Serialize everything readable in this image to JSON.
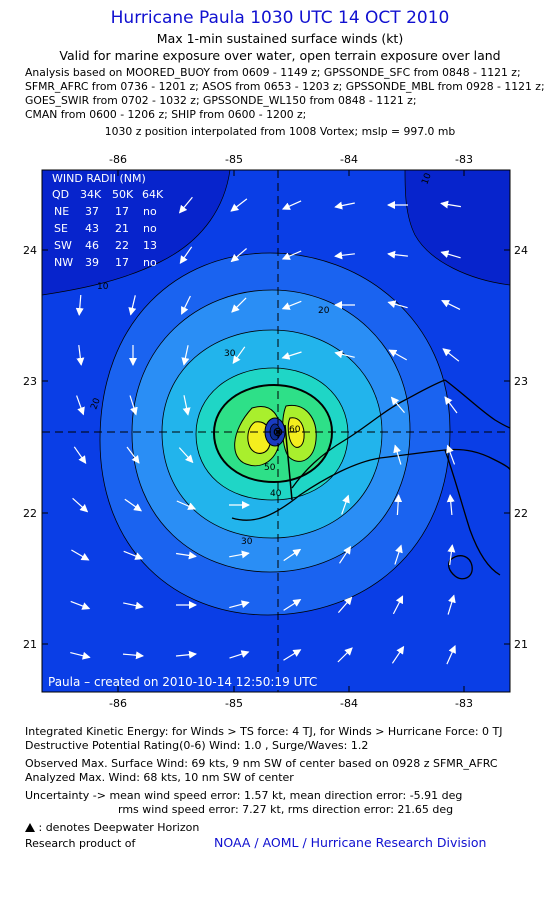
{
  "header": {
    "title": "Hurricane Paula 1030 UTC 14 OCT 2010",
    "subtitle": "Max 1-min sustained surface winds (kt)",
    "validity": "Valid for marine exposure over water, open terrain exposure over land",
    "analysis_lines": [
      "Analysis based on MOORED_BUOY from 0609 - 1149 z; GPSSONDE_SFC from 0848 - 1121 z;",
      "SFMR_AFRC from 0736 - 1201 z; ASOS from 0653 - 1203 z; GPSSONDE_MBL from 0928 - 1121 z;",
      "GOES_SWIR from 0702 - 1032 z; GPSSONDE_WL150 from 0848 - 1121 z;",
      "CMAN from 0600 - 1206 z; SHIP from 0600 - 1200 z;"
    ],
    "position_note": "1030 z position interpolated from 1008 Vortex; mslp = 997.0 mb"
  },
  "map": {
    "lon_ticks": [
      "-86",
      "-85",
      "-84",
      "-83"
    ],
    "lat_ticks": [
      "24",
      "23",
      "22",
      "21"
    ],
    "contour_labels": [
      "10",
      "10",
      "20",
      "20",
      "30",
      "30",
      "40",
      "50",
      "60"
    ],
    "caption": "Paula – created on 2010-10-14 12:50:19 UTC",
    "colors": {
      "background": "#0a3ee6",
      "outer_dark": "#0724cc",
      "level_20": "#1a63f0",
      "level_30": "#2a8ef5",
      "level_40": "#22b4ec",
      "level_50": "#1fd6c6",
      "level_60": "#2ee088",
      "level_64": "#a9ef2d",
      "level_core": "#f4ee1e",
      "arrow": "#ffffff",
      "coast": "#000000"
    }
  },
  "wind_radii": {
    "title": "WIND RADII (NM)",
    "header": [
      "QD",
      "34K",
      "50K",
      "64K"
    ],
    "rows": [
      [
        "NE",
        "37",
        "17",
        "no"
      ],
      [
        "SE",
        "43",
        "21",
        "no"
      ],
      [
        "SW",
        "46",
        "22",
        "13"
      ],
      [
        "NW",
        "39",
        "17",
        "no"
      ]
    ]
  },
  "footer": {
    "ike": "Integrated Kinetic Energy:  for Winds > TS force: 4 TJ,  for Winds > Hurricane Force: 0 TJ",
    "dpr": "Destructive Potential Rating(0-6)   Wind: 1.0 , Surge/Waves: 1.2",
    "observed": "Observed Max. Surface Wind: 69 kts, 9 nm SW of center based on 0928 z SFMR_AFRC",
    "analyzed": "Analyzed Max. Wind: 68 kts, 10 nm SW of center",
    "uncert1": "Uncertainty -> mean wind speed error: 1.57 kt,   mean direction error:  -5.91 deg",
    "uncert2": "rms wind speed error: 7.27 kt,   rms direction error: 21.65 deg",
    "deepwater": ": denotes Deepwater Horizon",
    "research": "Research product of",
    "credit": "NOAA / AOML / Hurricane Research Division"
  }
}
